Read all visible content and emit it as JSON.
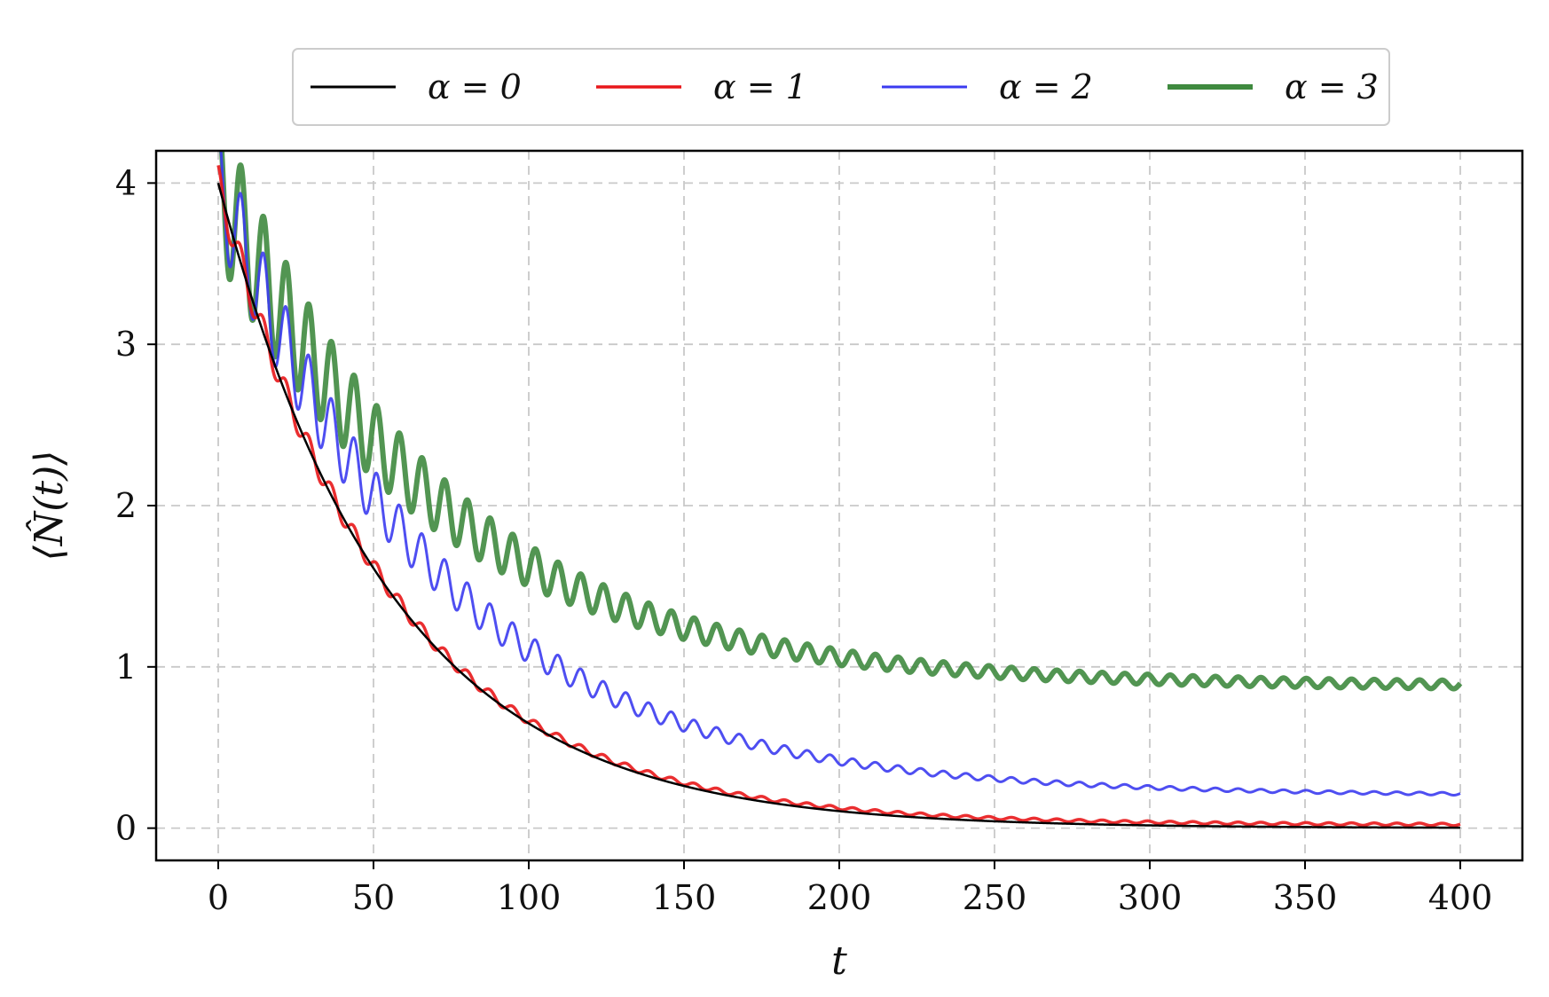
{
  "chart_data": {
    "type": "line",
    "title": "",
    "xlabel": "t",
    "ylabel": "⟨N̂(t)⟩",
    "xlim": [
      -20,
      420
    ],
    "ylim": [
      -0.2,
      4.2
    ],
    "x_ticks": [
      0,
      50,
      100,
      150,
      200,
      250,
      300,
      350,
      400
    ],
    "y_ticks": [
      0,
      1,
      2,
      3,
      4
    ],
    "grid": true,
    "legend_position": "top-center",
    "series": [
      {
        "name": "α = 0",
        "color": "#000000",
        "start": 4.0,
        "final": 0.0,
        "decay_time": 55,
        "oscillation_amplitude": 0.0,
        "oscillation_period": 7.3,
        "t_end": 400
      },
      {
        "name": "α = 1",
        "color": "#e8171a",
        "start": 4.0,
        "final": 0.02,
        "decay_time": 55,
        "oscillation_amplitude": 0.22,
        "oscillation_period": 7.3,
        "t_end": 400
      },
      {
        "name": "α = 2",
        "color": "#3b3bf0",
        "start": 4.0,
        "final": 0.2,
        "decay_time": 70,
        "oscillation_amplitude": 0.68,
        "oscillation_period": 7.3,
        "t_end": 400
      },
      {
        "name": "α = 3",
        "color": "#3f8a3f",
        "start": 4.0,
        "final": 0.88,
        "decay_time": 70,
        "oscillation_amplitude": 0.92,
        "oscillation_period": 7.3,
        "t_end": 400
      }
    ]
  }
}
